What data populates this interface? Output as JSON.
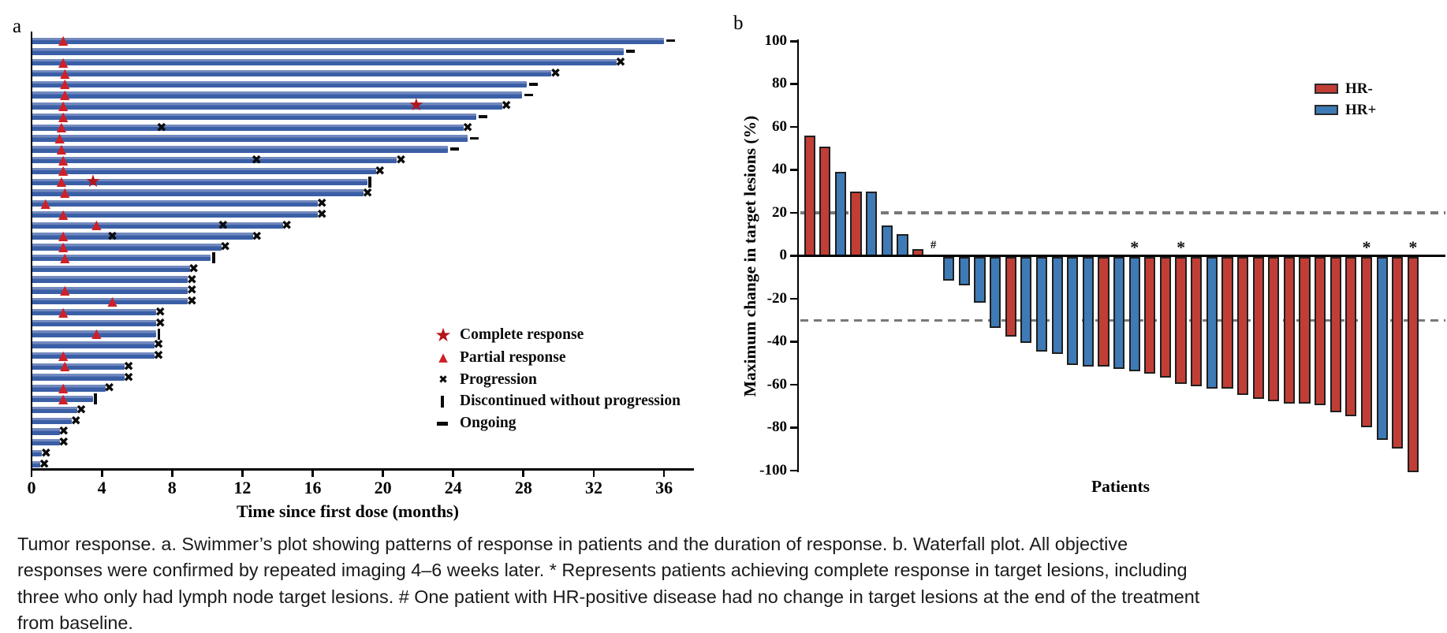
{
  "caption": "Tumor response. a. Swimmer’s plot showing patterns of response in patients and the duration of response. b. Waterfall plot. All objective responses were confirmed by repeated imaging 4–6 weeks later. * Represents patients achieving complete response in target lesions, including three who only had lymph node target lesions. # One patient with HR-positive disease had no change in target lesions at the end of the treatment from baseline.",
  "colors": {
    "swim_bar_dark": "#3A5FA6",
    "swim_bar_light": "#7289BE",
    "hr_negative_red": "#C13E36",
    "hr_positive_blue": "#3E7AB5",
    "partial_triangle_red": "#CE2029",
    "complete_star_red": "#B4151B",
    "progression_x_black": "#0b0b0b",
    "reference_dash_gray": "#787878",
    "axis_black": "#000000"
  },
  "chart_data": [
    {
      "type": "swimmer-bar",
      "title": "a",
      "xlabel": "Time since first dose (months)",
      "x_ticks": [
        0,
        4,
        8,
        12,
        16,
        20,
        24,
        28,
        32,
        36
      ],
      "xlim": [
        0,
        37.5
      ],
      "legend": [
        {
          "marker": "star",
          "label": "Complete response"
        },
        {
          "marker": "triangle",
          "label": "Partial response"
        },
        {
          "marker": "x",
          "label": "Progression"
        },
        {
          "marker": "discontinued",
          "label": "Discontinued without progression"
        },
        {
          "marker": "dash",
          "label": "Ongoing"
        }
      ],
      "patients": [
        {
          "months": 36.0,
          "end": "ongoing",
          "marks": [
            {
              "t": 1.8,
              "type": "partial"
            }
          ]
        },
        {
          "months": 33.7,
          "end": "ongoing",
          "marks": []
        },
        {
          "months": 33.3,
          "end": "progression",
          "marks": [
            {
              "t": 1.8,
              "type": "partial"
            }
          ]
        },
        {
          "months": 29.6,
          "end": "progression",
          "marks": [
            {
              "t": 1.9,
              "type": "partial"
            }
          ]
        },
        {
          "months": 28.2,
          "end": "ongoing",
          "marks": [
            {
              "t": 1.9,
              "type": "partial"
            }
          ]
        },
        {
          "months": 27.9,
          "end": "ongoing",
          "marks": [
            {
              "t": 1.9,
              "type": "partial"
            }
          ]
        },
        {
          "months": 26.8,
          "end": "progression",
          "marks": [
            {
              "t": 1.8,
              "type": "partial"
            },
            {
              "t": 21.9,
              "type": "complete"
            }
          ]
        },
        {
          "months": 25.3,
          "end": "ongoing",
          "marks": [
            {
              "t": 1.8,
              "type": "partial"
            }
          ]
        },
        {
          "months": 24.6,
          "end": "progression",
          "marks": [
            {
              "t": 1.7,
              "type": "partial"
            },
            {
              "t": 7.4,
              "type": "progression"
            }
          ]
        },
        {
          "months": 24.8,
          "end": "ongoing",
          "marks": [
            {
              "t": 1.6,
              "type": "partial"
            }
          ]
        },
        {
          "months": 23.7,
          "end": "ongoing",
          "marks": [
            {
              "t": 1.7,
              "type": "partial"
            }
          ]
        },
        {
          "months": 20.8,
          "end": "progression",
          "marks": [
            {
              "t": 1.8,
              "type": "partial"
            },
            {
              "t": 12.8,
              "type": "progression"
            }
          ]
        },
        {
          "months": 19.6,
          "end": "progression",
          "marks": [
            {
              "t": 1.8,
              "type": "partial"
            }
          ]
        },
        {
          "months": 19.1,
          "end": "discontinued",
          "marks": [
            {
              "t": 1.7,
              "type": "partial"
            },
            {
              "t": 3.5,
              "type": "complete"
            }
          ]
        },
        {
          "months": 18.9,
          "end": "progression",
          "marks": [
            {
              "t": 1.9,
              "type": "partial"
            }
          ]
        },
        {
          "months": 16.3,
          "end": "progression",
          "marks": [
            {
              "t": 0.8,
              "type": "partial"
            }
          ]
        },
        {
          "months": 16.3,
          "end": "progression",
          "marks": [
            {
              "t": 1.8,
              "type": "partial"
            }
          ]
        },
        {
          "months": 14.3,
          "end": "progression",
          "marks": [
            {
              "t": 3.7,
              "type": "partial"
            },
            {
              "t": 10.9,
              "type": "progression"
            }
          ]
        },
        {
          "months": 12.6,
          "end": "progression",
          "marks": [
            {
              "t": 1.8,
              "type": "partial"
            },
            {
              "t": 4.6,
              "type": "progression"
            }
          ]
        },
        {
          "months": 10.8,
          "end": "progression",
          "marks": [
            {
              "t": 1.8,
              "type": "partial"
            }
          ]
        },
        {
          "months": 10.2,
          "end": "discontinued",
          "marks": [
            {
              "t": 1.9,
              "type": "partial"
            }
          ]
        },
        {
          "months": 9.0,
          "end": "progression",
          "marks": []
        },
        {
          "months": 8.9,
          "end": "progression",
          "marks": []
        },
        {
          "months": 8.9,
          "end": "progression",
          "marks": [
            {
              "t": 1.9,
              "type": "partial"
            }
          ]
        },
        {
          "months": 8.9,
          "end": "progression",
          "marks": [
            {
              "t": 4.6,
              "type": "partial"
            }
          ]
        },
        {
          "months": 7.1,
          "end": "progression",
          "marks": [
            {
              "t": 1.8,
              "type": "partial"
            }
          ]
        },
        {
          "months": 7.1,
          "end": "progression",
          "marks": []
        },
        {
          "months": 7.1,
          "end": "discontinued",
          "marks": [
            {
              "t": 3.7,
              "type": "partial"
            }
          ]
        },
        {
          "months": 7.0,
          "end": "progression",
          "marks": []
        },
        {
          "months": 7.0,
          "end": "progression",
          "marks": [
            {
              "t": 1.8,
              "type": "partial"
            }
          ]
        },
        {
          "months": 5.3,
          "end": "progression",
          "marks": [
            {
              "t": 1.9,
              "type": "partial"
            }
          ]
        },
        {
          "months": 5.3,
          "end": "progression",
          "marks": []
        },
        {
          "months": 4.2,
          "end": "progression",
          "marks": [
            {
              "t": 1.8,
              "type": "partial"
            }
          ]
        },
        {
          "months": 3.5,
          "end": "discontinued",
          "marks": [
            {
              "t": 1.8,
              "type": "partial"
            }
          ]
        },
        {
          "months": 2.6,
          "end": "progression",
          "marks": []
        },
        {
          "months": 2.3,
          "end": "progression",
          "marks": []
        },
        {
          "months": 1.6,
          "end": "progression",
          "marks": []
        },
        {
          "months": 1.6,
          "end": "progression",
          "marks": []
        },
        {
          "months": 0.6,
          "end": "progression",
          "marks": []
        },
        {
          "months": 0.5,
          "end": "progression",
          "marks": []
        }
      ]
    },
    {
      "type": "bar",
      "title": "b",
      "ylabel": "Maximum change in target lesions (%)",
      "xlabel": "Patients",
      "y_ticks": [
        100,
        80,
        60,
        40,
        20,
        0,
        -20,
        -40,
        -60,
        -80,
        -100
      ],
      "ylim": [
        -100,
        100
      ],
      "reference_lines": [
        20,
        -30
      ],
      "legend": [
        {
          "label": "HR-",
          "group": "HR-"
        },
        {
          "label": "HR+",
          "group": "HR+"
        }
      ],
      "patients": [
        {
          "value": 56,
          "group": "HR-"
        },
        {
          "value": 51,
          "group": "HR-"
        },
        {
          "value": 39,
          "group": "HR+"
        },
        {
          "value": 30,
          "group": "HR-"
        },
        {
          "value": 30,
          "group": "HR+"
        },
        {
          "value": 14,
          "group": "HR+"
        },
        {
          "value": 10,
          "group": "HR+"
        },
        {
          "value": 3,
          "group": "HR-"
        },
        {
          "value": 0,
          "group": "HR+",
          "note": "#"
        },
        {
          "value": -11,
          "group": "HR+"
        },
        {
          "value": -13,
          "group": "HR+"
        },
        {
          "value": -21,
          "group": "HR+"
        },
        {
          "value": -33,
          "group": "HR+"
        },
        {
          "value": -37,
          "group": "HR-"
        },
        {
          "value": -40,
          "group": "HR+"
        },
        {
          "value": -44,
          "group": "HR+"
        },
        {
          "value": -45,
          "group": "HR+"
        },
        {
          "value": -50,
          "group": "HR+"
        },
        {
          "value": -51,
          "group": "HR+"
        },
        {
          "value": -51,
          "group": "HR-"
        },
        {
          "value": -52,
          "group": "HR+"
        },
        {
          "value": -53,
          "group": "HR+",
          "note": "*"
        },
        {
          "value": -54,
          "group": "HR-"
        },
        {
          "value": -56,
          "group": "HR-"
        },
        {
          "value": -59,
          "group": "HR-",
          "note": "*"
        },
        {
          "value": -60,
          "group": "HR-"
        },
        {
          "value": -61,
          "group": "HR+"
        },
        {
          "value": -61,
          "group": "HR-"
        },
        {
          "value": -64,
          "group": "HR-"
        },
        {
          "value": -66,
          "group": "HR-"
        },
        {
          "value": -67,
          "group": "HR-"
        },
        {
          "value": -68,
          "group": "HR-"
        },
        {
          "value": -68,
          "group": "HR-"
        },
        {
          "value": -69,
          "group": "HR-"
        },
        {
          "value": -72,
          "group": "HR-"
        },
        {
          "value": -74,
          "group": "HR-"
        },
        {
          "value": -79,
          "group": "HR-",
          "note": "*"
        },
        {
          "value": -85,
          "group": "HR+"
        },
        {
          "value": -89,
          "group": "HR-"
        },
        {
          "value": -100,
          "group": "HR-",
          "note": "*"
        }
      ]
    }
  ]
}
